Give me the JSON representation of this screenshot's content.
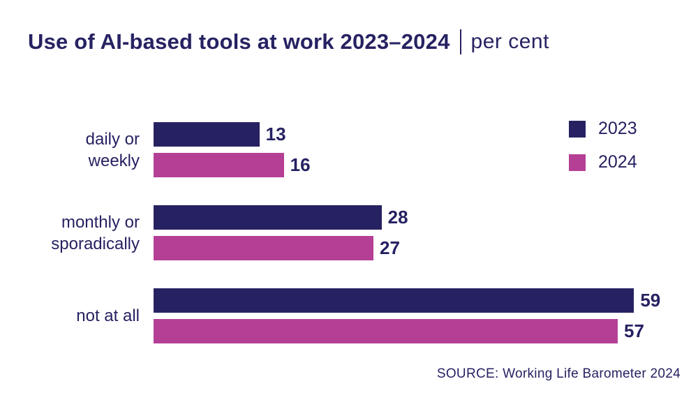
{
  "title": {
    "main": "Use of AI-based tools at work 2023–2024",
    "separator": "|",
    "unit": "per cent"
  },
  "source": "SOURCE: Working Life Barometer 2024",
  "colors": {
    "navy": "#262262",
    "magenta": "#b53f95",
    "text": "#262262",
    "background": "#ffffff"
  },
  "legend": {
    "position": "top-right",
    "items": [
      {
        "label": "2023",
        "color": "#262262"
      },
      {
        "label": "2024",
        "color": "#b53f95"
      }
    ]
  },
  "chart_data": {
    "type": "bar",
    "orientation": "horizontal",
    "title": "Use of AI-based tools at work 2023–2024",
    "unit": "per cent",
    "categories": [
      "daily or weekly",
      "monthly or sporadically",
      "not at all"
    ],
    "category_lines": [
      [
        "daily or",
        "weekly"
      ],
      [
        "monthly or",
        "sporadically"
      ],
      [
        "not at all"
      ]
    ],
    "series": [
      {
        "name": "2023",
        "color": "#262262",
        "values": [
          13,
          28,
          59
        ]
      },
      {
        "name": "2024",
        "color": "#b53f95",
        "values": [
          16,
          27,
          57
        ]
      }
    ],
    "xmax": 60,
    "grid": false,
    "value_labels": true,
    "legend_position": "top-right"
  }
}
